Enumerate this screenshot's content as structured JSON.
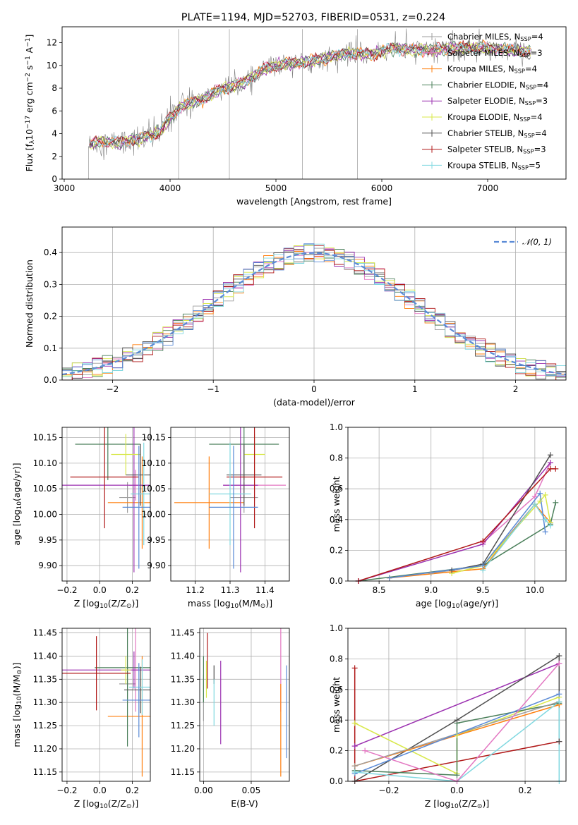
{
  "figure": {
    "title": "PLATE=1194, MJD=52703, FIBERID=0531, z=0.224"
  },
  "colors": {
    "data": "#808080",
    "Chabrier MILES": "#9e9e9e",
    "Salpeter MILES": "#e377c2",
    "Kroupa MILES": "#ff7f0e",
    "Chabrier ELODIE": "#4a7f5a",
    "Salpeter ELODIE": "#9b30b0",
    "Kroupa ELODIE": "#d8e84a",
    "Chabrier STELIB": "#505050",
    "Salpeter STELIB": "#b01818",
    "Kroupa STELIB": "#80d8e0",
    "blue": "#5a8ad6",
    "normal": "#5a8ad6"
  },
  "chart_data": [
    {
      "id": "spectrum",
      "type": "line",
      "title": "PLATE=1194, MJD=52703, FIBERID=0531, z=0.224",
      "xlabel": "wavelength [Angstrom, rest frame]",
      "ylabel": "Flux [f_λ 10^-17 erg cm^-2 s^-1 A^-1]",
      "xlim": [
        2980,
        7740
      ],
      "ylim": [
        0,
        13.4
      ],
      "xticks": [
        3000,
        4000,
        5000,
        6000,
        7000
      ],
      "yticks": [
        0,
        2,
        4,
        6,
        8,
        10,
        12
      ],
      "legend_position": "top-right",
      "legend": [
        "Chabrier MILES, N_SSP=4",
        "Salpeter MILES, N_SSP=3",
        "Kroupa MILES, N_SSP=4",
        "Chabrier ELODIE, N_SSP=4",
        "Salpeter ELODIE, N_SSP=3",
        "Kroupa ELODIE, N_SSP=4",
        "Chabrier STELIB, N_SSP=4",
        "Salpeter STELIB, N_SSP=3",
        "Kroupa STELIB, N_SSP=5"
      ],
      "continuum": {
        "x": [
          3230,
          3300,
          3500,
          3700,
          3900,
          4000,
          4100,
          4300,
          4500,
          4700,
          4900,
          5100,
          5300,
          5500,
          5700,
          5900,
          6100,
          6300,
          6500,
          6700,
          6900,
          7100,
          7300,
          7420
        ],
        "y": [
          2.9,
          3.3,
          3.2,
          3.5,
          4.1,
          5.4,
          6.4,
          7.0,
          8.0,
          8.5,
          9.7,
          10.2,
          10.3,
          10.7,
          11.1,
          11.0,
          11.5,
          11.4,
          11.4,
          11.5,
          11.6,
          11.5,
          11.3,
          11.2
        ]
      }
    },
    {
      "id": "residuals",
      "type": "line",
      "xlabel": "(data-model)/error",
      "ylabel": "Normed distribution",
      "xlim": [
        -2.5,
        2.5
      ],
      "ylim": [
        0,
        0.48
      ],
      "xticks": [
        -2,
        -1,
        0,
        1,
        2
      ],
      "yticks": [
        0.0,
        0.1,
        0.2,
        0.3,
        0.4
      ],
      "legend_position": "top-right",
      "legend": [
        "𝒩(0, 1)"
      ],
      "bin_width": 0.1,
      "grid": true
    },
    {
      "id": "age_vs_Z",
      "type": "scatter",
      "xlabel": "Z [log10(Z/Z⊙)]",
      "ylabel": "age  [log10(age/yr)]",
      "xlim": [
        -0.23,
        0.31
      ],
      "ylim": [
        9.87,
        10.17
      ],
      "xticks": [
        -0.2,
        0.0,
        0.2
      ],
      "yticks": [
        9.9,
        9.95,
        10.0,
        10.05,
        10.1,
        10.15
      ],
      "points": [
        {
          "model": "Chabrier MILES",
          "x": 0.17,
          "xerr": 0.05,
          "y": 10.033,
          "yerr": 0.03
        },
        {
          "model": "Salpeter MILES",
          "x": 0.22,
          "xerr": 0.04,
          "y": 10.057,
          "yerr": 0.03
        },
        {
          "model": "Kroupa MILES",
          "x": 0.26,
          "xerr": 0.21,
          "y": 10.023,
          "yerr": 0.09
        },
        {
          "model": "Chabrier ELODIE",
          "x": 0.05,
          "xerr": 0.2,
          "y": 10.137,
          "yerr": 0.07
        },
        {
          "model": "Salpeter ELODIE",
          "x": 0.21,
          "xerr": 0.45,
          "y": 10.057,
          "yerr": 0.17
        },
        {
          "model": "Kroupa ELODIE",
          "x": 0.16,
          "xerr": 0.09,
          "y": 10.117,
          "yerr": 0.04
        },
        {
          "model": "Chabrier STELIB",
          "x": 0.25,
          "xerr": 0.09,
          "y": 10.077,
          "yerr": 0.06
        },
        {
          "model": "Salpeter STELIB",
          "x": 0.03,
          "xerr": 0.21,
          "y": 10.073,
          "yerr": 0.1
        },
        {
          "model": "Kroupa STELIB",
          "x": 0.27,
          "xerr": 0.08,
          "y": 10.04,
          "yerr": 0.1
        },
        {
          "model": "blue",
          "x": 0.24,
          "xerr": 0.1,
          "y": 10.014,
          "yerr": 0.12
        }
      ]
    },
    {
      "id": "age_vs_mass",
      "type": "scatter",
      "xlabel": "mass [log10(M/M⊙)]",
      "xlim": [
        11.13,
        11.47
      ],
      "ylim": [
        9.87,
        10.17
      ],
      "xticks": [
        11.2,
        11.3,
        11.4
      ],
      "yticks": [
        9.9,
        9.95,
        10.0,
        10.05,
        10.1,
        10.15
      ],
      "points": [
        {
          "model": "Chabrier MILES",
          "x": 11.34,
          "xerr": 0.04,
          "y": 10.033,
          "yerr": 0.03
        },
        {
          "model": "Salpeter MILES",
          "x": 11.37,
          "xerr": 0.09,
          "y": 10.057,
          "yerr": 0.03
        },
        {
          "model": "Kroupa MILES",
          "x": 11.24,
          "xerr": 0.1,
          "y": 10.023,
          "yerr": 0.09
        },
        {
          "model": "Chabrier ELODIE",
          "x": 11.34,
          "xerr": 0.1,
          "y": 10.137,
          "yerr": 0.07
        },
        {
          "model": "Salpeter ELODIE",
          "x": 11.33,
          "xerr": 0.05,
          "y": 10.057,
          "yerr": 0.17
        },
        {
          "model": "Kroupa ELODIE",
          "x": 11.37,
          "xerr": 0.03,
          "y": 10.117,
          "yerr": 0.04
        },
        {
          "model": "Chabrier STELIB",
          "x": 11.34,
          "xerr": 0.05,
          "y": 10.077,
          "yerr": 0.06
        },
        {
          "model": "Salpeter STELIB",
          "x": 11.37,
          "xerr": 0.08,
          "y": 10.073,
          "yerr": 0.1
        },
        {
          "model": "Kroupa STELIB",
          "x": 11.3,
          "xerr": 0.06,
          "y": 10.04,
          "yerr": 0.1
        },
        {
          "model": "blue",
          "x": 11.31,
          "xerr": 0.07,
          "y": 10.014,
          "yerr": 0.12
        }
      ]
    },
    {
      "id": "mass_weight_vs_age",
      "type": "line",
      "xlabel": "age  [log10(age/yr)]",
      "ylabel": "mass weight",
      "xlim": [
        8.2,
        10.3
      ],
      "ylim": [
        0,
        1.0
      ],
      "xticks": [
        8.5,
        9.0,
        9.5,
        10.0
      ],
      "yticks": [
        0.0,
        0.2,
        0.4,
        0.6,
        0.8,
        1.0
      ],
      "series": [
        {
          "model": "Chabrier MILES",
          "x": [
            9.0,
            9.5,
            10.0,
            10.1
          ],
          "y": [
            0.05,
            0.1,
            0.5,
            0.4
          ]
        },
        {
          "model": "Salpeter MILES",
          "x": [
            9.5,
            10.0,
            10.15
          ],
          "y": [
            0.25,
            0.55,
            0.77
          ]
        },
        {
          "model": "Kroupa MILES",
          "x": [
            8.6,
            9.5,
            10.0,
            10.15
          ],
          "y": [
            0.02,
            0.08,
            0.5,
            0.38
          ]
        },
        {
          "model": "Chabrier ELODIE",
          "x": [
            8.3,
            9.5,
            10.15,
            10.2
          ],
          "y": [
            0.0,
            0.1,
            0.37,
            0.51
          ]
        },
        {
          "model": "Salpeter ELODIE",
          "x": [
            8.3,
            9.5,
            10.15
          ],
          "y": [
            0.0,
            0.24,
            0.77
          ]
        },
        {
          "model": "Kroupa ELODIE",
          "x": [
            9.2,
            9.5,
            10.05,
            10.1,
            10.15
          ],
          "y": [
            0.05,
            0.1,
            0.52,
            0.56,
            0.38
          ]
        },
        {
          "model": "Chabrier STELIB",
          "x": [
            9.2,
            9.5,
            10.15
          ],
          "y": [
            0.07,
            0.11,
            0.82
          ]
        },
        {
          "model": "Salpeter STELIB",
          "x": [
            8.3,
            9.5,
            10.15,
            10.2
          ],
          "y": [
            0.0,
            0.26,
            0.73,
            0.73
          ]
        },
        {
          "model": "Kroupa STELIB",
          "x": [
            9.5,
            10.0,
            10.1,
            10.15
          ],
          "y": [
            0.07,
            0.5,
            0.4,
            0.36
          ]
        },
        {
          "model": "blue",
          "x": [
            8.6,
            9.5,
            10.05,
            10.1
          ],
          "y": [
            0.02,
            0.1,
            0.57,
            0.32
          ]
        }
      ]
    },
    {
      "id": "mass_vs_Z",
      "type": "scatter",
      "xlabel": "Z [log10(Z/Z⊙)]",
      "ylabel": "mass [log10(M/M⊙)]",
      "xlim": [
        -0.23,
        0.31
      ],
      "ylim": [
        11.13,
        11.46
      ],
      "xticks": [
        -0.2,
        0.0,
        0.2
      ],
      "yticks": [
        11.15,
        11.2,
        11.25,
        11.3,
        11.35,
        11.4,
        11.45
      ],
      "points": [
        {
          "model": "Chabrier MILES",
          "x": 0.17,
          "xerr": 0.05,
          "y": 11.34,
          "yerr": 0.04
        },
        {
          "model": "Salpeter MILES",
          "x": 0.22,
          "xerr": 0.02,
          "y": 11.37,
          "yerr": 0.09
        },
        {
          "model": "Kroupa MILES",
          "x": 0.26,
          "xerr": 0.21,
          "y": 11.27,
          "yerr": 0.13
        },
        {
          "model": "Chabrier ELODIE",
          "x": 0.17,
          "xerr": 0.2,
          "y": 11.375,
          "yerr": 0.17
        },
        {
          "model": "Salpeter ELODIE",
          "x": 0.21,
          "xerr": 0.44,
          "y": 11.37,
          "yerr": 0.04
        },
        {
          "model": "Kroupa ELODIE",
          "x": 0.16,
          "xerr": 0.03,
          "y": 11.37,
          "yerr": 0.03
        },
        {
          "model": "Chabrier STELIB",
          "x": 0.25,
          "xerr": 0.1,
          "y": 11.327,
          "yerr": 0.05
        },
        {
          "model": "Salpeter STELIB",
          "x": -0.02,
          "xerr": 0.21,
          "y": 11.363,
          "yerr": 0.08
        },
        {
          "model": "Kroupa STELIB",
          "x": 0.26,
          "xerr": 0.08,
          "y": 11.333,
          "yerr": 0.06
        },
        {
          "model": "blue",
          "x": 0.24,
          "xerr": 0.1,
          "y": 11.305,
          "yerr": 0.08
        }
      ]
    },
    {
      "id": "mass_vs_EBV",
      "type": "scatter",
      "xlabel": "E(B-V)",
      "xlim": [
        -0.004,
        0.09
      ],
      "ylim": [
        11.13,
        11.46
      ],
      "xticks": [
        0.0,
        0.05
      ],
      "yticks": [
        11.15,
        11.2,
        11.25,
        11.3,
        11.35,
        11.4,
        11.45
      ],
      "points": [
        {
          "model": "Chabrier MILES",
          "x": 0.0,
          "y": 11.31,
          "yerr": 0.05
        },
        {
          "model": "Salpeter MILES",
          "x": 0.081,
          "y": 11.37,
          "yerr": 0.09
        },
        {
          "model": "Kroupa MILES",
          "x": 0.081,
          "y": 11.24,
          "yerr": 0.1
        },
        {
          "model": "Chabrier ELODIE",
          "x": 0.0,
          "y": 11.35,
          "yerr": 0.05
        },
        {
          "model": "Salpeter ELODIE",
          "x": 0.018,
          "y": 11.3,
          "yerr": 0.09
        },
        {
          "model": "Kroupa ELODIE",
          "x": 0.003,
          "y": 11.35,
          "yerr": 0.04
        },
        {
          "model": "Chabrier STELIB",
          "x": 0.011,
          "y": 11.36,
          "yerr": 0.02
        },
        {
          "model": "Salpeter STELIB",
          "x": 0.004,
          "y": 11.39,
          "yerr": 0.06
        },
        {
          "model": "Kroupa STELIB",
          "x": 0.011,
          "y": 11.3,
          "yerr": 0.05
        },
        {
          "model": "blue",
          "x": 0.087,
          "y": 11.28,
          "yerr": 0.1
        }
      ]
    },
    {
      "id": "mass_weight_vs_Z",
      "type": "line",
      "xlabel": "Z [log10(Z/Z⊙)]",
      "ylabel": "mass weight",
      "xlim": [
        -0.32,
        0.32
      ],
      "ylim": [
        0,
        1.0
      ],
      "xticks": [
        -0.2,
        0.0,
        0.2
      ],
      "yticks": [
        0.0,
        0.2,
        0.4,
        0.6,
        0.8,
        1.0
      ],
      "series": [
        {
          "model": "Salpeter STELIB",
          "x": [
            -0.3,
            -0.3,
            0.3
          ],
          "y": [
            0.74,
            0.0,
            0.26
          ]
        },
        {
          "model": "Salpeter ELODIE",
          "x": [
            -0.3,
            0.3
          ],
          "y": [
            0.23,
            0.77
          ]
        },
        {
          "model": "Kroupa ELODIE",
          "x": [
            -0.3,
            0.0,
            0.0,
            0.3
          ],
          "y": [
            0.38,
            0.05,
            0.3,
            0.55
          ]
        },
        {
          "model": "Chabrier ELODIE",
          "x": [
            -0.3,
            0.0,
            0.0,
            0.3
          ],
          "y": [
            0.07,
            0.04,
            0.38,
            0.51
          ]
        },
        {
          "model": "Chabrier STELIB",
          "x": [
            -0.3,
            0.0,
            0.3,
            0.3
          ],
          "y": [
            0.0,
            0.4,
            0.82,
            0.26
          ]
        },
        {
          "model": "Kroupa MILES",
          "x": [
            -0.3,
            0.3
          ],
          "y": [
            0.1,
            0.5
          ]
        },
        {
          "model": "Chabrier MILES",
          "x": [
            -0.3,
            0.3
          ],
          "y": [
            0.1,
            0.52
          ]
        },
        {
          "model": "blue",
          "x": [
            -0.3,
            0.3
          ],
          "y": [
            0.05,
            0.57
          ]
        },
        {
          "model": "Kroupa STELIB",
          "x": [
            -0.3,
            0.0,
            0.3,
            0.3
          ],
          "y": [
            0.06,
            0.0,
            0.52,
            0.0
          ]
        },
        {
          "model": "Salpeter MILES",
          "x": [
            -0.27,
            0.0,
            0.3
          ],
          "y": [
            0.2,
            0.0,
            0.77
          ]
        }
      ]
    }
  ]
}
